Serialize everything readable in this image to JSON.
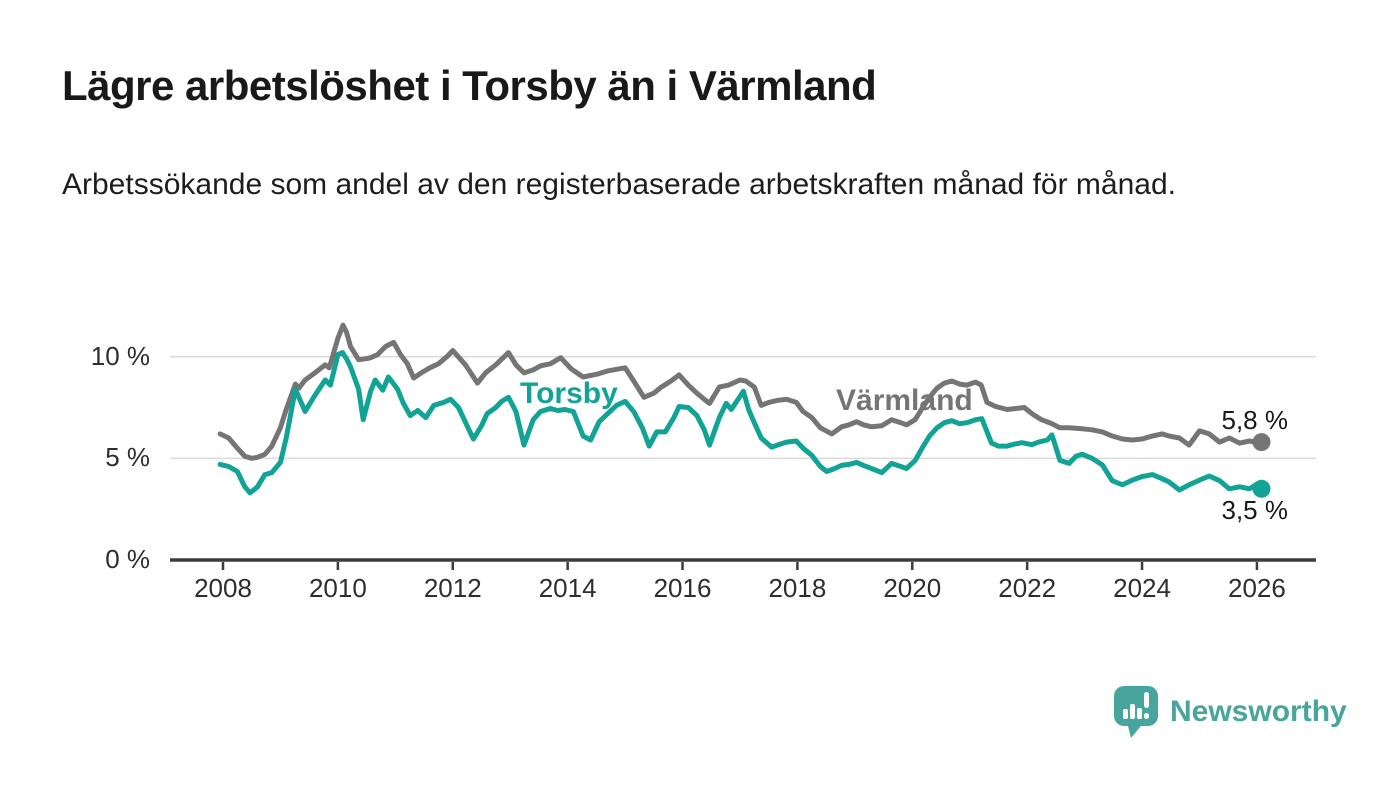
{
  "header": {
    "title": "Lägre arbetslöshet i Torsby än i Värmland",
    "subtitle": "Arbetssökande som andel av den registerbaserade arbetskraften månad för månad."
  },
  "branding": {
    "name": "Newsworthy",
    "icon": "newsworthy-speech-bubble-chart-icon",
    "color": "#48A59D"
  },
  "chart_data": {
    "type": "line",
    "title": "Lägre arbetslöshet i Torsby än i Värmland",
    "subtitle": "Arbetssökande som andel av den registerbaserade arbetskraften månad för månad.",
    "unit": "%",
    "grid": "horizontal-only",
    "legend_position": "inline-labels-on-lines",
    "x_axis": {
      "range": [
        2007.9,
        2027.0
      ],
      "ticks": [
        {
          "label": "2008",
          "value": 2008
        },
        {
          "label": "2010",
          "value": 2010
        },
        {
          "label": "2012",
          "value": 2012
        },
        {
          "label": "2014",
          "value": 2014
        },
        {
          "label": "2016",
          "value": 2016
        },
        {
          "label": "2018",
          "value": 2018
        },
        {
          "label": "2020",
          "value": 2020
        },
        {
          "label": "2022",
          "value": 2022
        },
        {
          "label": "2024",
          "value": 2024
        },
        {
          "label": "2026",
          "value": 2026
        }
      ]
    },
    "y_axis": {
      "range": [
        0,
        12
      ],
      "ticks": [
        {
          "label": "0 %",
          "value": 0
        },
        {
          "label": "5 %",
          "value": 5
        },
        {
          "label": "10 %",
          "value": 10
        }
      ],
      "gridlines": [
        5,
        10
      ]
    },
    "colors": {
      "grid": "#dcdcdc",
      "axis": "#3c3c3c"
    },
    "series": [
      {
        "name": "Torsby",
        "color": "#10A396",
        "end_label": "3,5 %",
        "end_value": 3.5,
        "points": [
          [
            2007.95,
            4.7
          ],
          [
            2008.1,
            4.6
          ],
          [
            2008.25,
            4.35
          ],
          [
            2008.38,
            3.6
          ],
          [
            2008.47,
            3.3
          ],
          [
            2008.6,
            3.6
          ],
          [
            2008.73,
            4.2
          ],
          [
            2008.85,
            4.3
          ],
          [
            2009.0,
            4.8
          ],
          [
            2009.1,
            6.0
          ],
          [
            2009.26,
            8.4
          ],
          [
            2009.43,
            7.3
          ],
          [
            2009.6,
            8.1
          ],
          [
            2009.78,
            8.85
          ],
          [
            2009.87,
            8.6
          ],
          [
            2010.0,
            10.1
          ],
          [
            2010.08,
            10.2
          ],
          [
            2010.15,
            9.9
          ],
          [
            2010.22,
            9.5
          ],
          [
            2010.36,
            8.4
          ],
          [
            2010.44,
            6.9
          ],
          [
            2010.57,
            8.3
          ],
          [
            2010.65,
            8.85
          ],
          [
            2010.78,
            8.35
          ],
          [
            2010.88,
            9.0
          ],
          [
            2011.04,
            8.4
          ],
          [
            2011.14,
            7.7
          ],
          [
            2011.26,
            7.1
          ],
          [
            2011.39,
            7.35
          ],
          [
            2011.53,
            7.0
          ],
          [
            2011.67,
            7.6
          ],
          [
            2011.84,
            7.75
          ],
          [
            2011.96,
            7.9
          ],
          [
            2012.1,
            7.5
          ],
          [
            2012.25,
            6.6
          ],
          [
            2012.36,
            5.95
          ],
          [
            2012.5,
            6.6
          ],
          [
            2012.6,
            7.2
          ],
          [
            2012.75,
            7.5
          ],
          [
            2012.85,
            7.8
          ],
          [
            2012.97,
            8.0
          ],
          [
            2013.1,
            7.3
          ],
          [
            2013.24,
            5.65
          ],
          [
            2013.4,
            6.9
          ],
          [
            2013.53,
            7.3
          ],
          [
            2013.7,
            7.45
          ],
          [
            2013.83,
            7.35
          ],
          [
            2013.95,
            7.4
          ],
          [
            2014.1,
            7.3
          ],
          [
            2014.27,
            6.1
          ],
          [
            2014.4,
            5.9
          ],
          [
            2014.55,
            6.8
          ],
          [
            2014.7,
            7.2
          ],
          [
            2014.85,
            7.6
          ],
          [
            2015.0,
            7.8
          ],
          [
            2015.15,
            7.3
          ],
          [
            2015.3,
            6.5
          ],
          [
            2015.42,
            5.6
          ],
          [
            2015.55,
            6.3
          ],
          [
            2015.7,
            6.3
          ],
          [
            2015.85,
            7.0
          ],
          [
            2015.94,
            7.55
          ],
          [
            2016.1,
            7.5
          ],
          [
            2016.25,
            7.1
          ],
          [
            2016.38,
            6.4
          ],
          [
            2016.47,
            5.65
          ],
          [
            2016.64,
            7.0
          ],
          [
            2016.76,
            7.7
          ],
          [
            2016.85,
            7.4
          ],
          [
            2017.06,
            8.3
          ],
          [
            2017.15,
            7.4
          ],
          [
            2017.25,
            6.75
          ],
          [
            2017.37,
            6.0
          ],
          [
            2017.55,
            5.55
          ],
          [
            2017.7,
            5.7
          ],
          [
            2017.81,
            5.8
          ],
          [
            2017.98,
            5.85
          ],
          [
            2018.1,
            5.5
          ],
          [
            2018.25,
            5.15
          ],
          [
            2018.4,
            4.6
          ],
          [
            2018.51,
            4.35
          ],
          [
            2018.65,
            4.5
          ],
          [
            2018.77,
            4.65
          ],
          [
            2018.9,
            4.7
          ],
          [
            2019.03,
            4.8
          ],
          [
            2019.15,
            4.65
          ],
          [
            2019.29,
            4.5
          ],
          [
            2019.47,
            4.3
          ],
          [
            2019.64,
            4.75
          ],
          [
            2019.8,
            4.6
          ],
          [
            2019.9,
            4.5
          ],
          [
            2020.05,
            4.9
          ],
          [
            2020.17,
            5.5
          ],
          [
            2020.3,
            6.1
          ],
          [
            2020.43,
            6.5
          ],
          [
            2020.56,
            6.75
          ],
          [
            2020.69,
            6.85
          ],
          [
            2020.82,
            6.7
          ],
          [
            2020.95,
            6.75
          ],
          [
            2021.1,
            6.9
          ],
          [
            2021.21,
            6.95
          ],
          [
            2021.38,
            5.75
          ],
          [
            2021.5,
            5.6
          ],
          [
            2021.65,
            5.6
          ],
          [
            2021.78,
            5.7
          ],
          [
            2021.91,
            5.77
          ],
          [
            2022.08,
            5.67
          ],
          [
            2022.2,
            5.8
          ],
          [
            2022.35,
            5.9
          ],
          [
            2022.43,
            6.15
          ],
          [
            2022.57,
            4.9
          ],
          [
            2022.73,
            4.75
          ],
          [
            2022.85,
            5.1
          ],
          [
            2022.96,
            5.2
          ],
          [
            2023.13,
            5.0
          ],
          [
            2023.31,
            4.67
          ],
          [
            2023.48,
            3.9
          ],
          [
            2023.66,
            3.7
          ],
          [
            2023.83,
            3.93
          ],
          [
            2024.0,
            4.1
          ],
          [
            2024.18,
            4.2
          ],
          [
            2024.35,
            4.0
          ],
          [
            2024.47,
            3.84
          ],
          [
            2024.65,
            3.44
          ],
          [
            2024.82,
            3.7
          ],
          [
            2025.0,
            3.93
          ],
          [
            2025.17,
            4.13
          ],
          [
            2025.35,
            3.9
          ],
          [
            2025.52,
            3.5
          ],
          [
            2025.7,
            3.6
          ],
          [
            2025.87,
            3.5
          ],
          [
            2025.98,
            3.7
          ],
          [
            2026.08,
            3.5
          ]
        ]
      },
      {
        "name": "Värmland",
        "color": "#757575",
        "end_label": "5,8 %",
        "end_value": 5.8,
        "points": [
          [
            2007.95,
            6.2
          ],
          [
            2008.1,
            6.0
          ],
          [
            2008.25,
            5.5
          ],
          [
            2008.38,
            5.1
          ],
          [
            2008.5,
            5.0
          ],
          [
            2008.6,
            5.05
          ],
          [
            2008.73,
            5.2
          ],
          [
            2008.85,
            5.6
          ],
          [
            2009.0,
            6.5
          ],
          [
            2009.1,
            7.4
          ],
          [
            2009.26,
            8.65
          ],
          [
            2009.32,
            8.45
          ],
          [
            2009.43,
            8.85
          ],
          [
            2009.6,
            9.2
          ],
          [
            2009.78,
            9.6
          ],
          [
            2009.85,
            9.45
          ],
          [
            2010.0,
            10.9
          ],
          [
            2010.09,
            11.55
          ],
          [
            2010.15,
            11.2
          ],
          [
            2010.22,
            10.5
          ],
          [
            2010.36,
            9.85
          ],
          [
            2010.5,
            9.9
          ],
          [
            2010.57,
            9.95
          ],
          [
            2010.69,
            10.1
          ],
          [
            2010.83,
            10.5
          ],
          [
            2010.97,
            10.7
          ],
          [
            2011.09,
            10.1
          ],
          [
            2011.21,
            9.65
          ],
          [
            2011.32,
            8.95
          ],
          [
            2011.45,
            9.2
          ],
          [
            2011.6,
            9.45
          ],
          [
            2011.75,
            9.65
          ],
          [
            2011.9,
            10.0
          ],
          [
            2012.0,
            10.3
          ],
          [
            2012.22,
            9.6
          ],
          [
            2012.43,
            8.7
          ],
          [
            2012.57,
            9.2
          ],
          [
            2012.75,
            9.6
          ],
          [
            2012.97,
            10.2
          ],
          [
            2013.1,
            9.6
          ],
          [
            2013.24,
            9.2
          ],
          [
            2013.4,
            9.35
          ],
          [
            2013.53,
            9.55
          ],
          [
            2013.7,
            9.65
          ],
          [
            2013.88,
            9.95
          ],
          [
            2014.06,
            9.4
          ],
          [
            2014.27,
            9.0
          ],
          [
            2014.53,
            9.15
          ],
          [
            2014.7,
            9.3
          ],
          [
            2014.9,
            9.4
          ],
          [
            2015.0,
            9.45
          ],
          [
            2015.15,
            8.8
          ],
          [
            2015.33,
            8.0
          ],
          [
            2015.5,
            8.2
          ],
          [
            2015.63,
            8.5
          ],
          [
            2015.8,
            8.8
          ],
          [
            2015.94,
            9.1
          ],
          [
            2016.1,
            8.6
          ],
          [
            2016.25,
            8.2
          ],
          [
            2016.38,
            7.9
          ],
          [
            2016.47,
            7.7
          ],
          [
            2016.64,
            8.5
          ],
          [
            2016.8,
            8.6
          ],
          [
            2017.0,
            8.85
          ],
          [
            2017.1,
            8.8
          ],
          [
            2017.25,
            8.5
          ],
          [
            2017.37,
            7.6
          ],
          [
            2017.5,
            7.75
          ],
          [
            2017.65,
            7.85
          ],
          [
            2017.81,
            7.9
          ],
          [
            2017.98,
            7.75
          ],
          [
            2018.1,
            7.3
          ],
          [
            2018.25,
            7.0
          ],
          [
            2018.4,
            6.5
          ],
          [
            2018.6,
            6.2
          ],
          [
            2018.77,
            6.55
          ],
          [
            2018.9,
            6.65
          ],
          [
            2019.03,
            6.8
          ],
          [
            2019.15,
            6.65
          ],
          [
            2019.29,
            6.55
          ],
          [
            2019.47,
            6.6
          ],
          [
            2019.64,
            6.9
          ],
          [
            2019.8,
            6.75
          ],
          [
            2019.9,
            6.65
          ],
          [
            2020.05,
            6.9
          ],
          [
            2020.17,
            7.45
          ],
          [
            2020.3,
            8.0
          ],
          [
            2020.43,
            8.45
          ],
          [
            2020.56,
            8.7
          ],
          [
            2020.69,
            8.8
          ],
          [
            2020.82,
            8.65
          ],
          [
            2020.95,
            8.6
          ],
          [
            2021.1,
            8.75
          ],
          [
            2021.2,
            8.6
          ],
          [
            2021.3,
            7.75
          ],
          [
            2021.45,
            7.55
          ],
          [
            2021.65,
            7.4
          ],
          [
            2021.8,
            7.45
          ],
          [
            2021.95,
            7.5
          ],
          [
            2022.08,
            7.2
          ],
          [
            2022.25,
            6.9
          ],
          [
            2022.43,
            6.7
          ],
          [
            2022.57,
            6.5
          ],
          [
            2022.73,
            6.5
          ],
          [
            2022.96,
            6.45
          ],
          [
            2023.13,
            6.4
          ],
          [
            2023.31,
            6.3
          ],
          [
            2023.48,
            6.1
          ],
          [
            2023.66,
            5.95
          ],
          [
            2023.83,
            5.9
          ],
          [
            2024.0,
            5.95
          ],
          [
            2024.18,
            6.1
          ],
          [
            2024.35,
            6.2
          ],
          [
            2024.47,
            6.1
          ],
          [
            2024.65,
            6.0
          ],
          [
            2024.82,
            5.65
          ],
          [
            2025.0,
            6.35
          ],
          [
            2025.17,
            6.2
          ],
          [
            2025.35,
            5.8
          ],
          [
            2025.52,
            6.0
          ],
          [
            2025.7,
            5.75
          ],
          [
            2025.87,
            5.85
          ],
          [
            2025.98,
            5.8
          ],
          [
            2026.08,
            5.8
          ]
        ]
      }
    ]
  }
}
